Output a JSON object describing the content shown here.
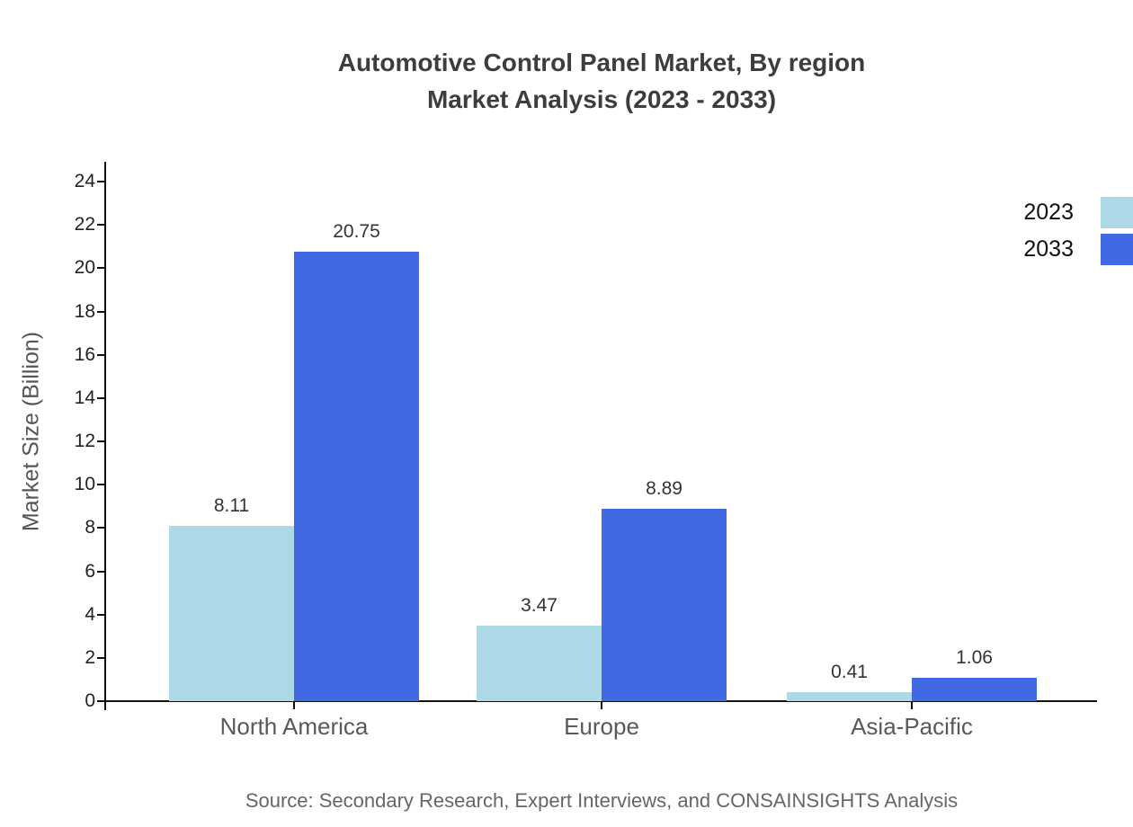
{
  "title": {
    "line1": "Automotive Control Panel Market, By region",
    "line2": "Market Analysis (2023 - 2033)"
  },
  "source": "Source: Secondary Research, Expert Interviews, and CONSAINSIGHTS Analysis",
  "colors": {
    "series_2023": "#ADD8E6",
    "series_2033": "#4169E1",
    "axis": "#111111",
    "title_text": "#3d3d3d",
    "tick_label": "#222222",
    "value_label": "#333333",
    "category_label": "#595959",
    "axis_title": "#555555",
    "source_text": "#666666",
    "background": "#ffffff"
  },
  "chart_data": {
    "type": "bar",
    "title": "Automotive Control Panel Market, By region Market Analysis (2023 - 2033)",
    "categories": [
      "North America",
      "Europe",
      "Asia-Pacific"
    ],
    "series": [
      {
        "name": "2023",
        "color": "#ADD8E6",
        "values": [
          8.11,
          3.47,
          0.41
        ]
      },
      {
        "name": "2033",
        "color": "#4169E1",
        "values": [
          20.75,
          8.89,
          1.06
        ]
      }
    ],
    "xlabel": "",
    "ylabel": "Market Size (Billion)",
    "ylim": [
      0,
      25
    ],
    "yticks": [
      0,
      2,
      4,
      6,
      8,
      10,
      12,
      14,
      16,
      18,
      20,
      22,
      24
    ],
    "grid": false,
    "legend_position": "top-right",
    "value_labels": true,
    "value_label_format": "2dp"
  }
}
